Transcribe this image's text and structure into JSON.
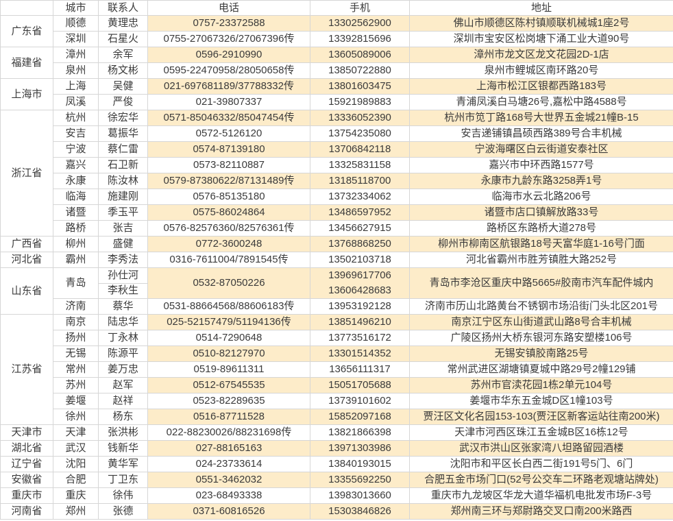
{
  "colors": {
    "stripe": "#FDECC9",
    "border": "#D6D6D6",
    "text": "#3A3A3A",
    "bg": "#FFFFFF"
  },
  "header": {
    "province": "",
    "city": "城市",
    "contact": "联系人",
    "phone": "电话",
    "mobile": "手机",
    "address": "地址"
  },
  "groups": [
    {
      "province": "广东省",
      "rows": [
        {
          "city": "顺德",
          "contacts": [
            "黄理忠"
          ],
          "phone": "0757-23372588",
          "mobiles": [
            "13302562900"
          ],
          "address": "佛山市顺德区陈村镇顺联机械城1座2号"
        },
        {
          "city": "深圳",
          "contacts": [
            "石星火"
          ],
          "phone": "0755-27067326/27067396传",
          "mobiles": [
            "13392815696"
          ],
          "address": "深圳市宝安区松岗塘下涌工业大道90号"
        }
      ]
    },
    {
      "province": "福建省",
      "rows": [
        {
          "city": "漳州",
          "contacts": [
            "余军"
          ],
          "phone": "0596-2910990",
          "mobiles": [
            "13605089006"
          ],
          "address": "漳州市龙文区龙文花园2D-1店"
        },
        {
          "city": "泉州",
          "contacts": [
            "杨文彬"
          ],
          "phone": "0595-22470958/28050658传",
          "mobiles": [
            "13850722880"
          ],
          "address": "泉州市鲤城区南环路20号"
        }
      ]
    },
    {
      "province": "上海市",
      "rows": [
        {
          "city": "上海",
          "contacts": [
            "吴健"
          ],
          "phone": "021-697681189/37788332传",
          "mobiles": [
            "13801603475"
          ],
          "address": "上海市松江区银都西路183号"
        },
        {
          "city": "凤溪",
          "contacts": [
            "严俊"
          ],
          "phone": "021-39807337",
          "mobiles": [
            "15921989883"
          ],
          "address": "青浦凤溪白马塘26号,嘉松中路4588号"
        }
      ]
    },
    {
      "province": "浙江省",
      "rows": [
        {
          "city": "杭州",
          "contacts": [
            "徐宏华"
          ],
          "phone": "0571-85046332/85047454传",
          "mobiles": [
            "13336052390"
          ],
          "address": "杭州市笕丁路168号大世界五金城21幢B-15"
        },
        {
          "city": "安吉",
          "contacts": [
            "葛振华"
          ],
          "phone": "0572-5126120",
          "mobiles": [
            "13754235080"
          ],
          "address": "安吉递铺镇昌硕西路389号合丰机械"
        },
        {
          "city": "宁波",
          "contacts": [
            "蔡仁雷"
          ],
          "phone": "0574-87139180",
          "mobiles": [
            "13706842118"
          ],
          "address": "宁波海曙区白云街道安泰社区"
        },
        {
          "city": "嘉兴",
          "contacts": [
            "石卫新"
          ],
          "phone": "0573-82110887",
          "mobiles": [
            "13325831158"
          ],
          "address": "嘉兴市中环西路1577号"
        },
        {
          "city": "永康",
          "contacts": [
            "陈汝林"
          ],
          "phone": "0579-87380622/87131489传",
          "mobiles": [
            "13185118700"
          ],
          "address": "永康市九龄东路3258弄1号"
        },
        {
          "city": "临海",
          "contacts": [
            "施建刚"
          ],
          "phone": "0576-85135180",
          "mobiles": [
            "13732334062"
          ],
          "address": "临海市水云北路206号"
        },
        {
          "city": "诸暨",
          "contacts": [
            "季玉平"
          ],
          "phone": "0575-86024864",
          "mobiles": [
            "13486597952"
          ],
          "address": "诸暨市店口镇解放路33号"
        },
        {
          "city": "路桥",
          "contacts": [
            "张吉"
          ],
          "phone": "0576-82576360/82576361传",
          "mobiles": [
            "13456627915"
          ],
          "address": "路桥区东路桥大道278号"
        }
      ]
    },
    {
      "province": "广西省",
      "rows": [
        {
          "city": "柳州",
          "contacts": [
            "盛健"
          ],
          "phone": "0772-3600248",
          "mobiles": [
            "13768868250"
          ],
          "address": "柳州市柳南区航银路18号天富华庭1-16号门面"
        }
      ]
    },
    {
      "province": "河北省",
      "rows": [
        {
          "city": "霸州",
          "contacts": [
            "李秀法"
          ],
          "phone": "0316-7611004/7891545传",
          "mobiles": [
            "13502103718"
          ],
          "address": "河北省霸州市胜芳镇胜大路252号"
        }
      ]
    },
    {
      "province": "山东省",
      "rows": [
        {
          "city": "青岛",
          "contacts": [
            "孙仕河",
            "李秋生"
          ],
          "phone": "0532-87050226",
          "mobiles": [
            "13969617706",
            "13606428683"
          ],
          "address": "青岛市李沧区重庆中路5665#胶南市汽车配件城内"
        },
        {
          "city": "济南",
          "contacts": [
            "蔡华"
          ],
          "phone": "0531-88664568/88606183传",
          "mobiles": [
            "13953192128"
          ],
          "address": "济南市历山北路黄台不锈钢市场沿街门头北区201号"
        }
      ]
    },
    {
      "province": "江苏省",
      "rows": [
        {
          "city": "南京",
          "contacts": [
            "陆忠华"
          ],
          "phone": "025-52157479/51194136传",
          "mobiles": [
            "13851496210"
          ],
          "address": "南京江宁区东山街道武山路8号合丰机械"
        },
        {
          "city": "扬州",
          "contacts": [
            "丁永林"
          ],
          "phone": "0514-7290648",
          "mobiles": [
            "13773516172"
          ],
          "address": "广陵区扬州大桥东银河东路安塑楼106号"
        },
        {
          "city": "无锡",
          "contacts": [
            "陈源平"
          ],
          "phone": "0510-82127970",
          "mobiles": [
            "13301514352"
          ],
          "address": "无锡安镇胶南路25号"
        },
        {
          "city": "常州",
          "contacts": [
            "姜万忠"
          ],
          "phone": "0519-89611311",
          "mobiles": [
            "13656111317"
          ],
          "address": "常州武进区湖塘镇夏城中路29号2幢129铺"
        },
        {
          "city": "苏州",
          "contacts": [
            "赵军"
          ],
          "phone": "0512-67545535",
          "mobiles": [
            "15051705688"
          ],
          "address": "苏州市官渎花园1栋2单元104号"
        },
        {
          "city": "姜堰",
          "contacts": [
            "赵祥"
          ],
          "phone": "0523-82289635",
          "mobiles": [
            "13739101602"
          ],
          "address": "姜堰市华东五金城D区1幢103号"
        },
        {
          "city": "徐州",
          "contacts": [
            "杨东"
          ],
          "phone": "0516-87711528",
          "mobiles": [
            "15852097168"
          ],
          "address": "贾汪区文化名园153-103(贾汪区新客运站往南200米)"
        }
      ]
    },
    {
      "province": "天津市",
      "rows": [
        {
          "city": "天津",
          "contacts": [
            "张洪彬"
          ],
          "phone": "022-88230026/88231698传",
          "mobiles": [
            "13821866398"
          ],
          "address": "天津市河西区珠江五金城B区16栋12号"
        }
      ]
    },
    {
      "province": "湖北省",
      "rows": [
        {
          "city": "武汉",
          "contacts": [
            "钱新华"
          ],
          "phone": "027-88165163",
          "mobiles": [
            "13971303986"
          ],
          "address": "武汉市洪山区张家湾八坦路留园酒楼"
        }
      ]
    },
    {
      "province": "辽宁省",
      "rows": [
        {
          "city": "沈阳",
          "contacts": [
            "黄华军"
          ],
          "phone": "024-23733614",
          "mobiles": [
            "13840193015"
          ],
          "address": "沈阳市和平区长白西二街191号5门、6门"
        }
      ]
    },
    {
      "province": "安徽省",
      "rows": [
        {
          "city": "合肥",
          "contacts": [
            "丁卫东"
          ],
          "phone": "0551-3462032",
          "mobiles": [
            "13355692250"
          ],
          "address": "合肥五金市场门口(52号公交车二环路老观塘站牌处)"
        }
      ]
    },
    {
      "province": "重庆市",
      "rows": [
        {
          "city": "重庆",
          "contacts": [
            "徐伟"
          ],
          "phone": "023-68493338",
          "mobiles": [
            "13983013660"
          ],
          "address": "重庆市九龙坡区华龙大道华福机电批发市场F-3号"
        }
      ]
    },
    {
      "province": "河南省",
      "rows": [
        {
          "city": "郑州",
          "contacts": [
            "张德"
          ],
          "phone": "0371-60816526",
          "mobiles": [
            "15303846826"
          ],
          "address": "郑州南三环与郑尉路交叉口南200米路西"
        }
      ]
    }
  ]
}
